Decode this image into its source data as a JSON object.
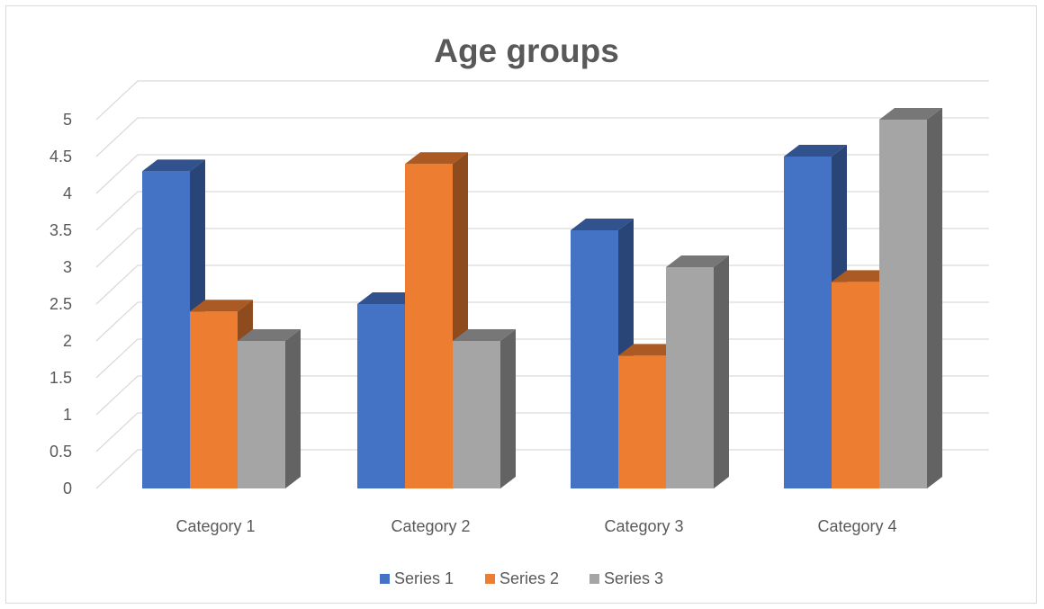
{
  "chart_data": {
    "type": "bar",
    "title": "Age groups",
    "xlabel": "",
    "ylabel": "",
    "categories": [
      "Category 1",
      "Category 2",
      "Category 3",
      "Category 4"
    ],
    "series": [
      {
        "name": "Series 1",
        "values": [
          4.3,
          2.5,
          3.5,
          4.5
        ],
        "color": "#4472c4"
      },
      {
        "name": "Series 2",
        "values": [
          2.4,
          4.4,
          1.8,
          2.8
        ],
        "color": "#ed7d31"
      },
      {
        "name": "Series 3",
        "values": [
          2,
          2,
          3,
          5
        ],
        "color": "#a5a5a5"
      }
    ],
    "yticks": [
      "0",
      "0.5",
      "1",
      "1.5",
      "2",
      "2.5",
      "3",
      "3.5",
      "4",
      "4.5",
      "5"
    ],
    "ylim": [
      0,
      5
    ],
    "grid": true,
    "legend_position": "bottom",
    "style": "3d-clustered-column"
  }
}
